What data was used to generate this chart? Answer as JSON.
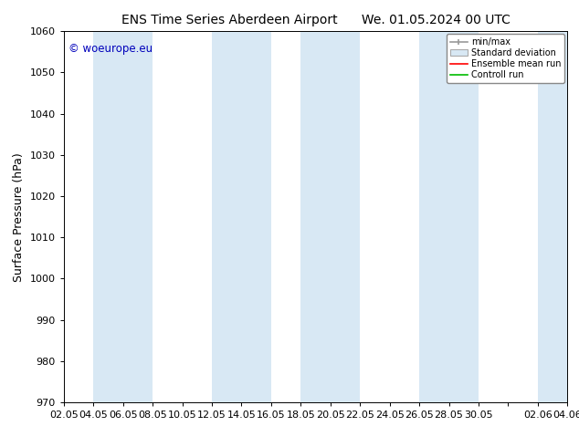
{
  "title_left": "ENS Time Series Aberdeen Airport",
  "title_right": "We. 01.05.2024 00 UTC",
  "ylabel": "Surface Pressure (hPa)",
  "ylim": [
    970,
    1060
  ],
  "yticks": [
    970,
    980,
    990,
    1000,
    1010,
    1020,
    1030,
    1040,
    1050,
    1060
  ],
  "xtick_labels": [
    "02.05",
    "04.05",
    "06.05",
    "08.05",
    "10.05",
    "12.05",
    "14.05",
    "16.05",
    "18.05",
    "20.05",
    "22.05",
    "24.05",
    "26.05",
    "28.05",
    "30.05",
    "",
    "02.06",
    "04.06"
  ],
  "background_color": "#ffffff",
  "plot_bg_color": "#ffffff",
  "band_color": "#d8e8f4",
  "copyright_text": "© woeurope.eu",
  "copyright_color": "#0000bb",
  "legend_labels": [
    "min/max",
    "Standard deviation",
    "Ensemble mean run",
    "Controll run"
  ],
  "figsize": [
    6.34,
    4.9
  ],
  "dpi": 100,
  "title_fontsize": 10,
  "axis_fontsize": 8,
  "ylabel_fontsize": 9
}
